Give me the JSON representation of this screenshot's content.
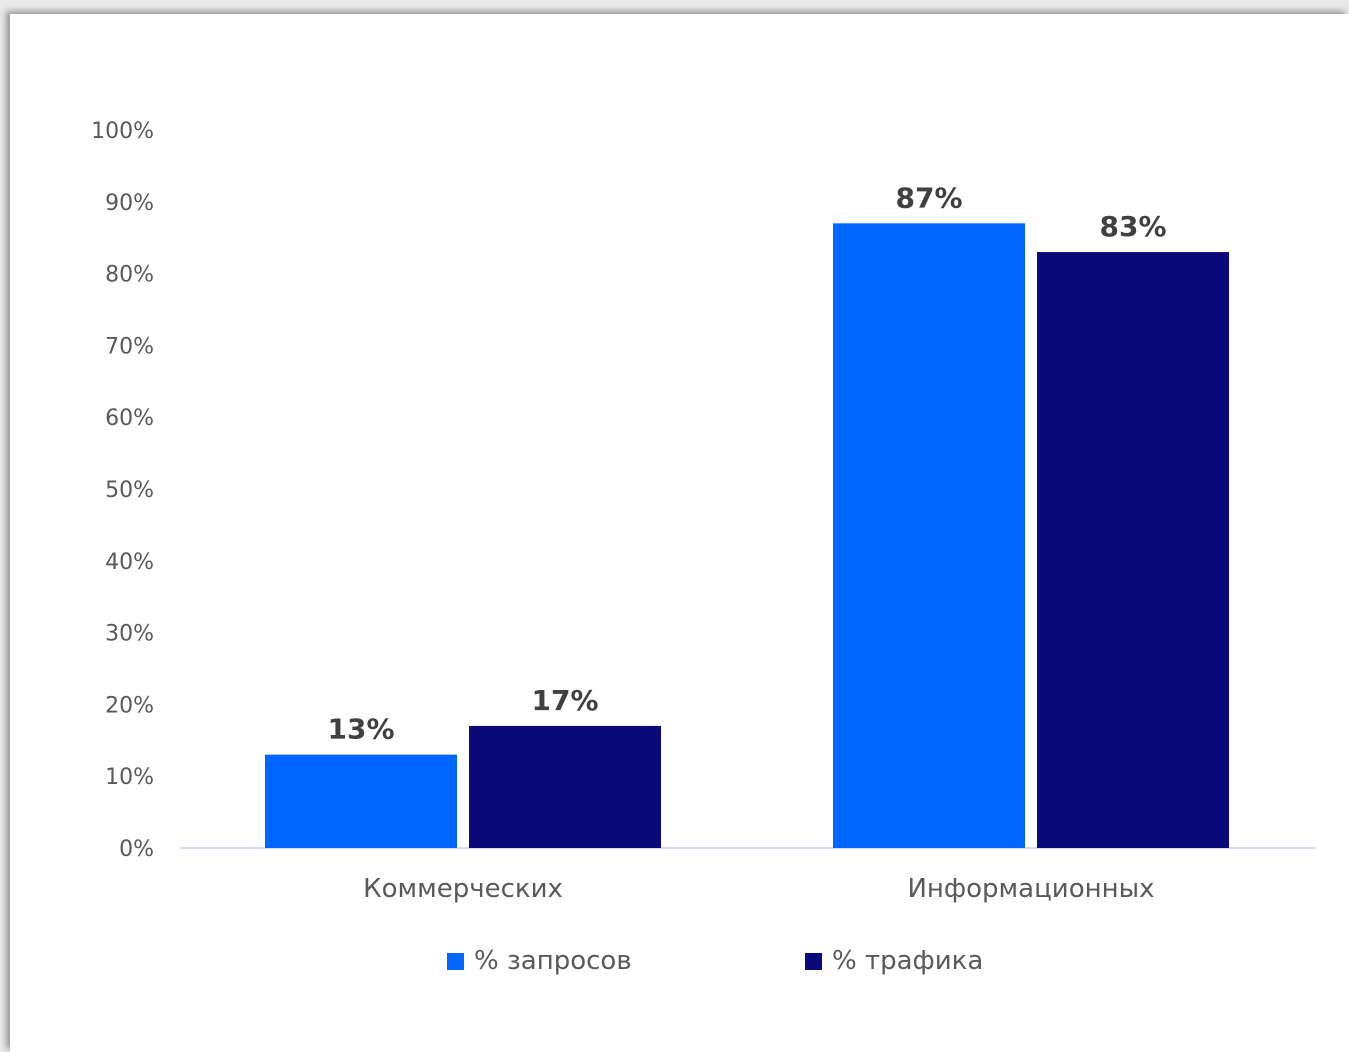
{
  "chart_data": {
    "type": "bar",
    "categories": [
      "Коммерческих",
      "Информационных"
    ],
    "series": [
      {
        "name": "% запросов",
        "values": [
          13,
          87
        ],
        "color": "#0066ff",
        "labels": [
          "13%",
          "87%"
        ]
      },
      {
        "name": "% трафика",
        "values": [
          17,
          83
        ],
        "color": "#0a0a7a",
        "labels": [
          "17%",
          "83%"
        ]
      }
    ],
    "ylim": [
      0,
      100
    ],
    "yticks": [
      "0%",
      "10%",
      "20%",
      "30%",
      "40%",
      "50%",
      "60%",
      "70%",
      "80%",
      "90%",
      "100%"
    ],
    "grid": false,
    "legend_position": "bottom",
    "axis_line_color": "#d9d9f5"
  }
}
